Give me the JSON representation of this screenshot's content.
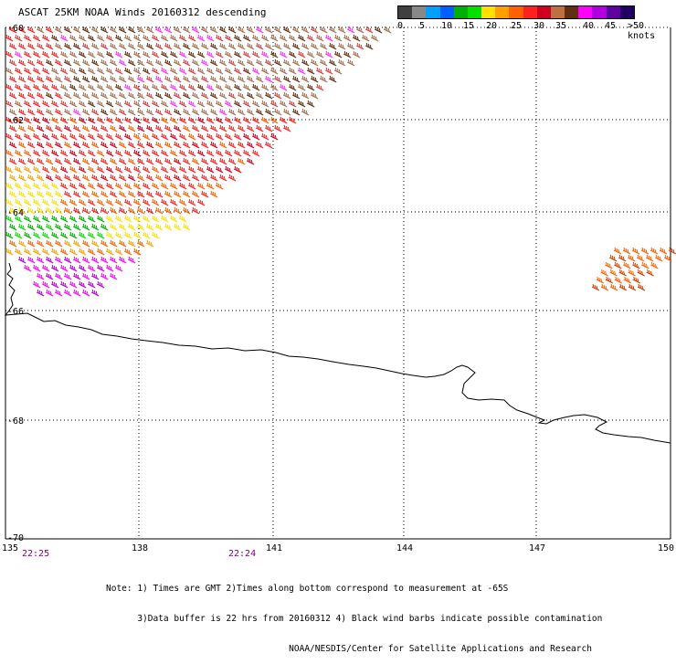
{
  "title": "ASCAT 25KM NOAA Winds 20160312 descending",
  "legend": {
    "colors": [
      "#404040",
      "#888888",
      "#00a0ff",
      "#0060ff",
      "#00b000",
      "#00e000",
      "#ffe000",
      "#ffa000",
      "#ff6000",
      "#ff2020",
      "#d00020",
      "#c07040",
      "#603010",
      "#ff00ff",
      "#b000e0",
      "#6000a0",
      "#200060"
    ],
    "ticks": [
      "0",
      "5",
      "10",
      "15",
      "20",
      "25",
      "30",
      "35",
      "40",
      "45",
      ">50 knots"
    ]
  },
  "lat_labels": [
    "-60",
    "-62",
    "-64",
    "-66",
    "-68",
    "-70"
  ],
  "lon_labels": [
    "135",
    "138",
    "141",
    "144",
    "147",
    "150"
  ],
  "time_labels": [
    "22:25",
    "22:24"
  ],
  "note_lines": [
    "Note: 1) Times are GMT 2)Times along bottom correspond to measurement at -65S",
    "      3)Data buffer is 22 hrs from 20160312 4) Black wind barbs indicate possible contamination",
    "                                   NOAA/NESDIS/Center for Satellite Applications and Research"
  ]
}
